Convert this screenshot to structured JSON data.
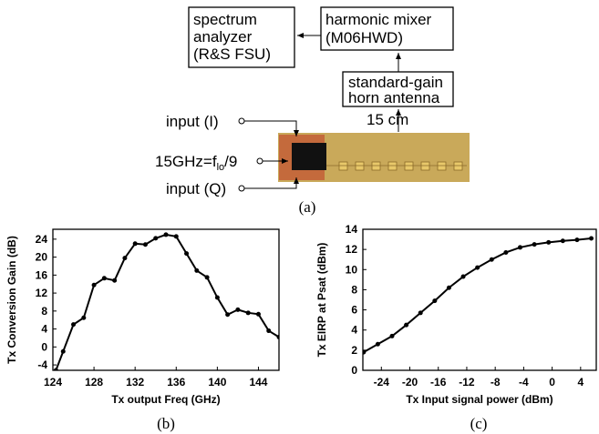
{
  "diagram": {
    "spectrum_analyzer": [
      "spectrum",
      "analyzer",
      "(R&S FSU)"
    ],
    "harmonic_mixer": [
      "harmonic mixer",
      "(M06HWD)"
    ],
    "horn_antenna": [
      "standard-gain",
      "horn antenna"
    ],
    "distance": "15 cm",
    "input_i": "input (I)",
    "lo_input": {
      "text": "15GHz=f",
      "sub": "lo",
      "tail": "/9"
    },
    "input_q": "input (Q)"
  },
  "captions": [
    "(a)",
    "(b)",
    "(c)"
  ],
  "chart_data": [
    {
      "type": "line",
      "x_label": "Tx output Freq (GHz)",
      "y_label": "Tx Conversion Gain (dB)",
      "color": "#000000",
      "x": [
        124.3,
        125,
        126,
        127,
        128,
        129,
        130,
        131,
        132,
        133,
        134,
        135,
        136,
        137,
        138,
        139,
        140,
        141,
        142,
        143,
        144,
        145,
        146
      ],
      "series": [
        {
          "values": [
            -5.2,
            -1,
            5,
            6.5,
            13.8,
            15.3,
            14.8,
            19.8,
            23,
            22.8,
            24.2,
            25,
            24.6,
            20.8,
            17,
            15.5,
            11,
            7.2,
            8.3,
            7.6,
            7.3,
            3.6,
            2.2
          ]
        }
      ],
      "xlim": [
        124,
        146
      ],
      "ylim": [
        -5.2,
        26.2
      ],
      "xticks": [
        124,
        128,
        132,
        136,
        140,
        144
      ],
      "yticks": [
        -4,
        0,
        4,
        8,
        12,
        16,
        20,
        24
      ]
    },
    {
      "type": "line",
      "x_label": "Tx Input signal power (dBm)",
      "y_label": "Tx EIRP at Psat (dBm)",
      "color": "#000000",
      "x": [
        -26.5,
        -24.5,
        -22.5,
        -20.5,
        -18.5,
        -16.5,
        -14.5,
        -12.5,
        -10.5,
        -8.5,
        -6.5,
        -4.5,
        -2.5,
        -0.5,
        1.5,
        3.5,
        5.5
      ],
      "series": [
        {
          "values": [
            1.8,
            2.6,
            3.4,
            4.5,
            5.7,
            6.9,
            8.2,
            9.3,
            10.2,
            11,
            11.7,
            12.2,
            12.5,
            12.7,
            12.85,
            12.95,
            13.1
          ]
        }
      ],
      "xlim": [
        -26.6,
        6.2
      ],
      "ylim": [
        0,
        14
      ],
      "xticks": [
        -24,
        -20,
        -16,
        -12,
        -8,
        -4,
        0,
        4
      ],
      "yticks": [
        0,
        2,
        4,
        6,
        8,
        10,
        12,
        14
      ]
    }
  ]
}
